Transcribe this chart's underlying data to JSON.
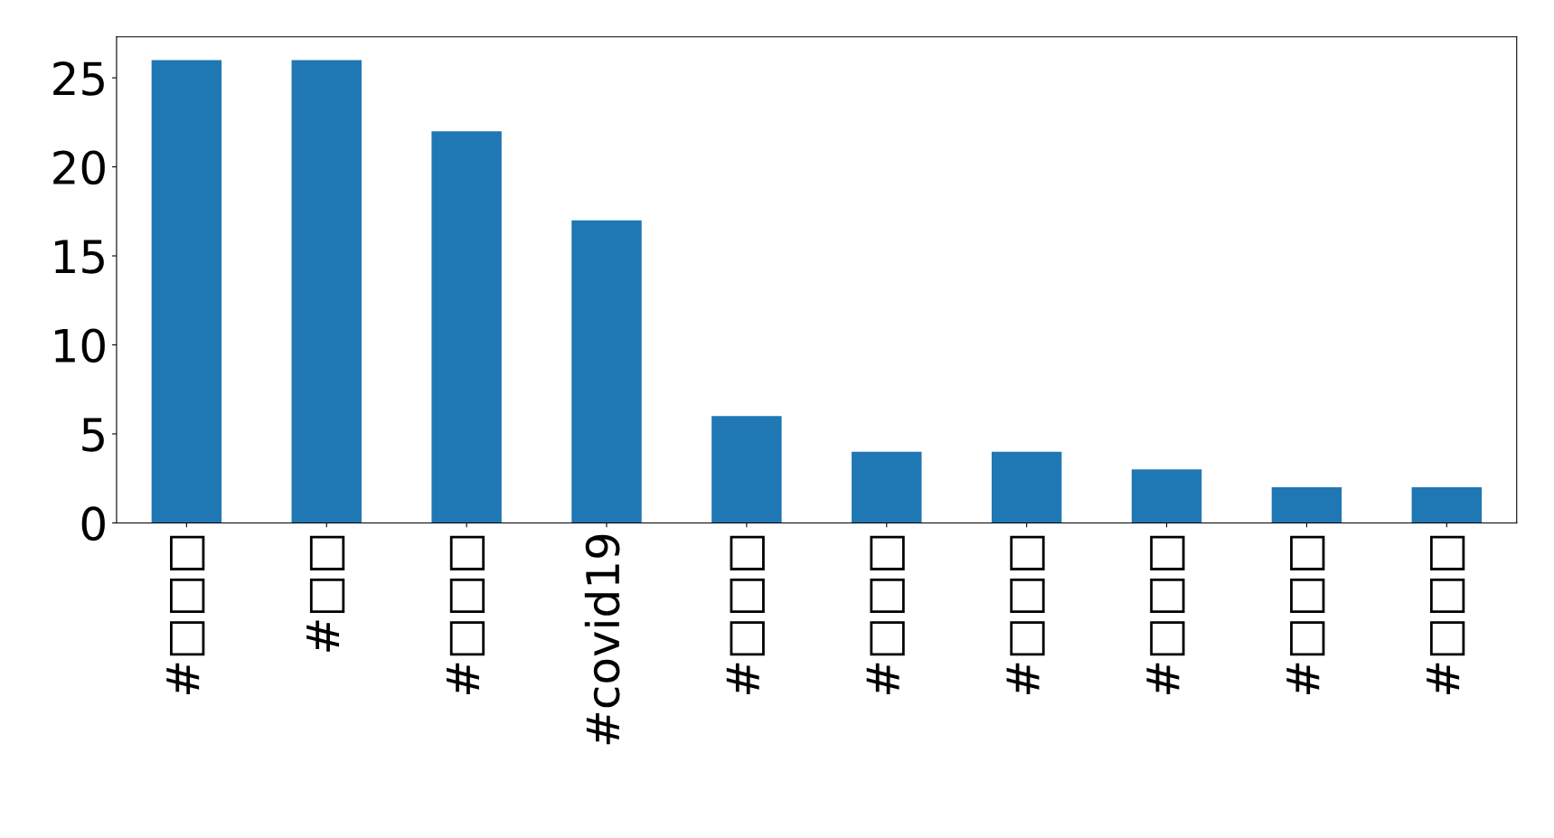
{
  "chart_data": {
    "type": "bar",
    "categories": [
      "#□□□",
      "#□□",
      "#□□□",
      "#covid19",
      "#□□□",
      "#□□□",
      "#□□□",
      "#□□□",
      "#□□□",
      "#□□□"
    ],
    "values": [
      26,
      26,
      22,
      17,
      6,
      4,
      4,
      3,
      2,
      2
    ],
    "color": "#1f77b4",
    "ylim": [
      0,
      27.3
    ],
    "yticks": [
      0,
      5,
      10,
      15,
      20,
      25
    ],
    "grid": false,
    "legend": false
  }
}
